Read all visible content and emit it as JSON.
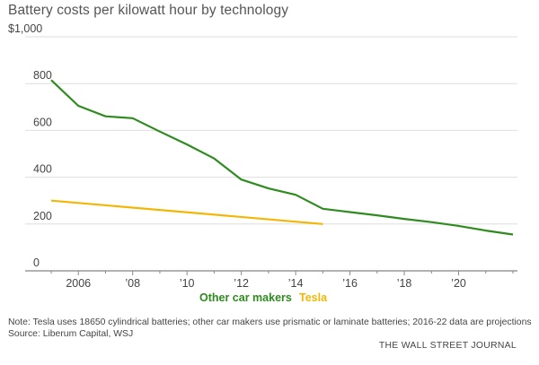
{
  "chart_data": {
    "type": "line",
    "title": "Battery costs per kilowatt hour by technology",
    "xlabel": "",
    "ylabel": "",
    "ylim": [
      0,
      1000
    ],
    "xlim": [
      2005,
      2022
    ],
    "grid": true,
    "yticks": [
      {
        "value": 1000,
        "label": "$1,000"
      },
      {
        "value": 800,
        "label": "800"
      },
      {
        "value": 600,
        "label": "600"
      },
      {
        "value": 400,
        "label": "400"
      },
      {
        "value": 200,
        "label": "200"
      },
      {
        "value": 0,
        "label": "0"
      }
    ],
    "xticks": [
      {
        "value": 2006,
        "label": "2006"
      },
      {
        "value": 2008,
        "label": "’08"
      },
      {
        "value": 2010,
        "label": "’10"
      },
      {
        "value": 2012,
        "label": "’12"
      },
      {
        "value": 2014,
        "label": "’14"
      },
      {
        "value": 2016,
        "label": "’16"
      },
      {
        "value": 2018,
        "label": "’18"
      },
      {
        "value": 2020,
        "label": "’20"
      }
    ],
    "minor_ticks": [
      2005,
      2007,
      2009,
      2011,
      2013,
      2015,
      2017,
      2019,
      2021,
      2022
    ],
    "legend_position": "bottom-center",
    "series": [
      {
        "name": "Other car makers",
        "color": "#2e8b1e",
        "x": [
          2005,
          2006,
          2007,
          2008,
          2009,
          2010,
          2011,
          2012,
          2013,
          2014,
          2015,
          2016,
          2017,
          2018,
          2019,
          2020,
          2021,
          2022
        ],
        "values": [
          815,
          705,
          660,
          652,
          595,
          540,
          480,
          390,
          352,
          325,
          265,
          251,
          237,
          222,
          208,
          192,
          172,
          155
        ]
      },
      {
        "name": "Tesla",
        "color": "#f2b705",
        "x": [
          2005,
          2015
        ],
        "values": [
          300,
          200
        ]
      }
    ]
  },
  "note": "Note: Tesla uses 18650 cylindrical batteries; other car makers use prismatic or laminate batteries; 2016-22 data are projections",
  "source": "Source: Liberum Capital, WSJ",
  "credit": "THE WALL STREET JOURNAL"
}
